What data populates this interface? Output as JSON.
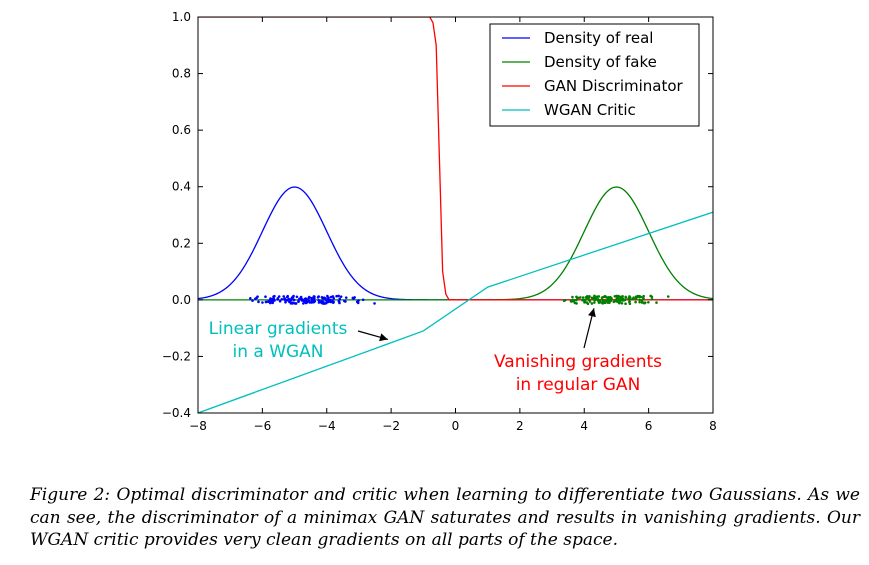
{
  "chart_data": {
    "type": "line",
    "xlim": [
      -8,
      8
    ],
    "ylim": [
      -0.4,
      1.0
    ],
    "x_ticks": [
      -8,
      -6,
      -4,
      -2,
      0,
      2,
      4,
      6,
      8
    ],
    "y_ticks": [
      -0.4,
      -0.2,
      0.0,
      0.2,
      0.4,
      0.6,
      0.8,
      1.0
    ],
    "x_tick_labels": [
      "−8",
      "−6",
      "−4",
      "−2",
      "0",
      "2",
      "4",
      "6",
      "8"
    ],
    "y_tick_labels": [
      "−0.4",
      "−0.2",
      "0.0",
      "0.2",
      "0.4",
      "0.6",
      "0.8",
      "1.0"
    ],
    "grid": false,
    "legend_position": "top-right",
    "series": [
      {
        "name": "Density of real",
        "color": "#0000ff",
        "function": "gaussian",
        "mean": -5,
        "std": 1,
        "peak": 0.399
      },
      {
        "name": "Density of fake",
        "color": "#008000",
        "function": "gaussian",
        "mean": 5,
        "std": 1,
        "peak": 0.399
      },
      {
        "name": "GAN Discriminator",
        "color": "#ff0000",
        "function": "sigmoid-step",
        "points": [
          [
            -8,
            1.0
          ],
          [
            -0.8,
            1.0
          ],
          [
            -0.7,
            0.98
          ],
          [
            -0.6,
            0.9
          ],
          [
            -0.5,
            0.5
          ],
          [
            -0.4,
            0.1
          ],
          [
            -0.3,
            0.02
          ],
          [
            -0.2,
            0.0
          ],
          [
            8,
            0.0
          ]
        ]
      },
      {
        "name": "WGAN Critic",
        "color": "#00bfbf",
        "function": "piecewise-linear",
        "points": [
          [
            -8,
            -0.4
          ],
          [
            -1,
            -0.11
          ],
          [
            1,
            0.045
          ],
          [
            8,
            0.31
          ]
        ]
      }
    ],
    "samples": [
      {
        "name": "real samples",
        "color": "#0000ff",
        "x_range": [
          -7.0,
          -2.3
        ]
      },
      {
        "name": "fake samples",
        "color": "#008000",
        "x_range": [
          2.7,
          7.0
        ]
      }
    ],
    "annotations": [
      {
        "lines": [
          "Linear gradients",
          "in a WGAN"
        ],
        "color": "#00bfbf",
        "arrow_to": [
          -2.1,
          -0.14
        ]
      },
      {
        "lines": [
          "Vanishing gradients",
          "in regular GAN"
        ],
        "color": "#ff0000",
        "arrow_to": [
          4.3,
          -0.03
        ]
      }
    ]
  },
  "caption": "Figure 2: Optimal discriminator and critic when learning to differentiate two Gaussians. As we can see, the discriminator of a minimax GAN saturates and results in vanishing gradients. Our WGAN critic provides very clean gradients on all parts of the space."
}
